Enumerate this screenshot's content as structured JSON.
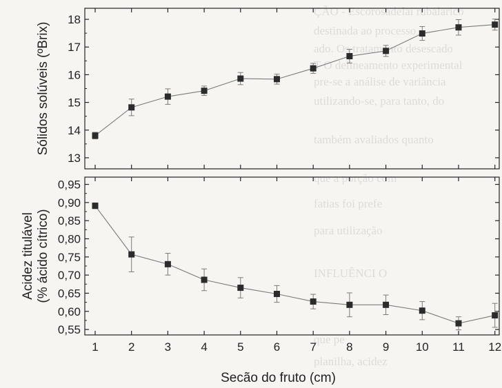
{
  "chart_data": [
    {
      "type": "line",
      "ylabel": "Sólidos solúveis (ºBrix)",
      "ylim": [
        12.6,
        18.4
      ],
      "yticks": [
        13,
        14,
        15,
        16,
        17,
        18
      ],
      "ytick_labels": [
        "13",
        "14",
        "15",
        "16",
        "17",
        "18"
      ],
      "x": [
        1,
        2,
        3,
        4,
        5,
        6,
        7,
        8,
        9,
        10,
        11,
        12
      ],
      "series": [
        {
          "values": [
            13.8,
            14.82,
            15.21,
            15.42,
            15.86,
            15.84,
            16.23,
            16.67,
            16.86,
            17.49,
            17.71,
            17.81
          ],
          "errors": [
            0.12,
            0.3,
            0.28,
            0.17,
            0.22,
            0.18,
            0.18,
            0.25,
            0.2,
            0.25,
            0.28,
            0.2
          ]
        }
      ],
      "grid": false
    },
    {
      "type": "line",
      "ylabel_lines": [
        "Acidez titulável",
        "(% ácido cítrico)"
      ],
      "xlabel": "Secão do fruto (cm)",
      "ylim": [
        0.535,
        0.97
      ],
      "yticks": [
        0.55,
        0.6,
        0.65,
        0.7,
        0.75,
        0.8,
        0.85,
        0.9,
        0.95
      ],
      "ytick_labels": [
        "0,55",
        "0,60",
        "0,65",
        "0,70",
        "0,75",
        "0,80",
        "0,85",
        "0,90",
        "0,95"
      ],
      "x": [
        1,
        2,
        3,
        4,
        5,
        6,
        7,
        8,
        9,
        10,
        11,
        12
      ],
      "xtick_labels": [
        "1",
        "2",
        "3",
        "4",
        "5",
        "6",
        "7",
        "8",
        "9",
        "10",
        "11",
        "12"
      ],
      "series": [
        {
          "values": [
            0.891,
            0.757,
            0.73,
            0.687,
            0.665,
            0.648,
            0.627,
            0.618,
            0.618,
            0.602,
            0.567,
            0.589
          ],
          "errors": [
            0.008,
            0.048,
            0.03,
            0.03,
            0.028,
            0.023,
            0.02,
            0.033,
            0.027,
            0.025,
            0.018,
            0.033
          ]
        }
      ],
      "grid": false
    }
  ],
  "background_text": [
    "ÇÃO - Escorosadelai rubalarico",
    "destinada ao processo",
    "ado. Os tratamento desescado",
    "T O delineamento experimental",
    "pre-se a análise de variância",
    "utilizando-se, para tanto, do",
    "também avaliados quanto",
    "que a porção com",
    "fatias foi prefe",
    "para utilização",
    "INFLUÊNCI O",
    "que pe",
    "planilha, acidez"
  ],
  "colors": {
    "line": "#7a7a7a",
    "marker": "#2b2b2b",
    "axis": "#222222"
  }
}
